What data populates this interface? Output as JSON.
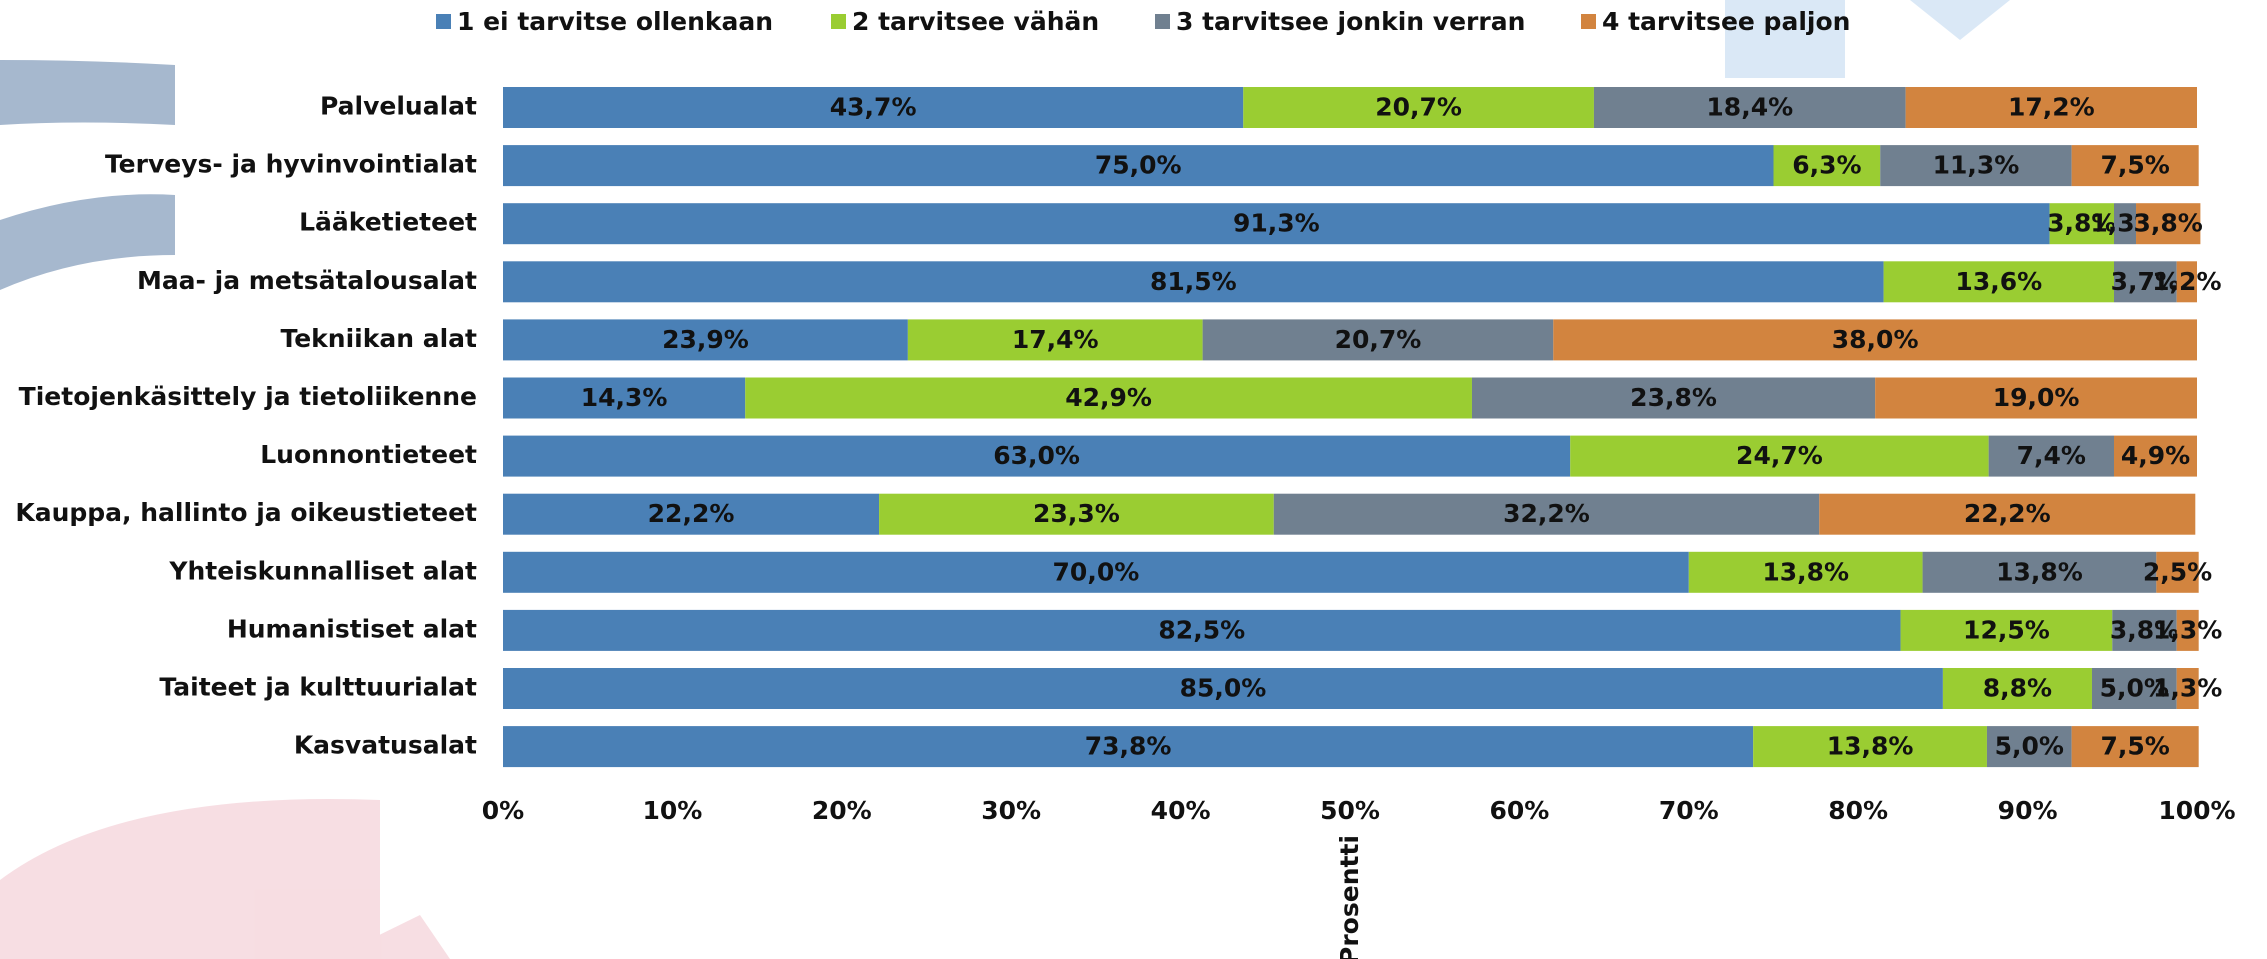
{
  "chart_data": {
    "type": "bar",
    "stacked": true,
    "x_label": "Prosentti",
    "categories": [
      "Palvelualat",
      "Terveys- ja hyvinvointialat",
      "Lääketieteet",
      "Maa- ja metsätalousalat",
      "Tekniikan alat",
      "Tietojenkäsittely ja tietoliikenne",
      "Luonnontieteet",
      "Kauppa, hallinto ja oikeustieteet",
      "Yhteiskunnalliset alat",
      "Humanistiset alat",
      "Taiteet ja kulttuurialat",
      "Kasvatusalat"
    ],
    "series": [
      {
        "name": "1 ei tarvitse ollenkaan",
        "color": "#4a80b6",
        "values": [
          43.7,
          75.0,
          91.3,
          81.5,
          23.9,
          14.3,
          63.0,
          22.2,
          70.0,
          82.5,
          85.0,
          73.8
        ],
        "value_labels": [
          "43,7%",
          "75,0%",
          "91,3%",
          "81,5%",
          "23,9%",
          "14,3%",
          "63,0%",
          "22,2%",
          "70,0%",
          "82,5%",
          "85,0%",
          "73,8%"
        ]
      },
      {
        "name": "2 tarvitsee vähän",
        "color": "#9acd32",
        "values": [
          20.7,
          6.3,
          3.8,
          13.6,
          17.4,
          42.9,
          24.7,
          23.3,
          13.8,
          12.5,
          8.8,
          13.8
        ],
        "value_labels": [
          "20,7%",
          "6,3%",
          "3,8%",
          "13,6%",
          "17,4%",
          "42,9%",
          "24,7%",
          "23,3%",
          "13,8%",
          "12,5%",
          "8,8%",
          "13,8%"
        ]
      },
      {
        "name": "3 tarvitsee jonkin verran",
        "color": "#708090",
        "values": [
          18.4,
          11.3,
          1.3,
          3.7,
          20.7,
          23.8,
          7.4,
          32.2,
          13.8,
          3.8,
          5.0,
          5.0
        ],
        "value_labels": [
          "18,4%",
          "11,3%",
          "1,3%",
          "3,7%",
          "20,7%",
          "23,8%",
          "7,4%",
          "32,2%",
          "13,8%",
          "3,8%",
          "5,0%",
          "5,0%"
        ]
      },
      {
        "name": "4 tarvitsee paljon",
        "color": "#d2843f",
        "values": [
          17.2,
          7.5,
          3.8,
          1.2,
          38.0,
          19.0,
          4.9,
          22.2,
          2.5,
          1.3,
          1.3,
          7.5
        ],
        "value_labels": [
          "17,2%",
          "7,5%",
          "3,8%",
          "1,2%",
          "38,0%",
          "19,0%",
          "4,9%",
          "22,2%",
          "2,5%",
          "1,3%",
          "1,3%",
          "7,5%"
        ]
      }
    ],
    "xlim": [
      0,
      100
    ],
    "xticks": [
      {
        "value": 0,
        "label": "0%"
      },
      {
        "value": 10,
        "label": "10%"
      },
      {
        "value": 20,
        "label": "20%"
      },
      {
        "value": 30,
        "label": "30%"
      },
      {
        "value": 40,
        "label": "40%"
      },
      {
        "value": 50,
        "label": "50%"
      },
      {
        "value": 60,
        "label": "60%"
      },
      {
        "value": 70,
        "label": "70%"
      },
      {
        "value": 80,
        "label": "80%"
      },
      {
        "value": 90,
        "label": "90%"
      },
      {
        "value": 100,
        "label": "100%"
      }
    ]
  }
}
